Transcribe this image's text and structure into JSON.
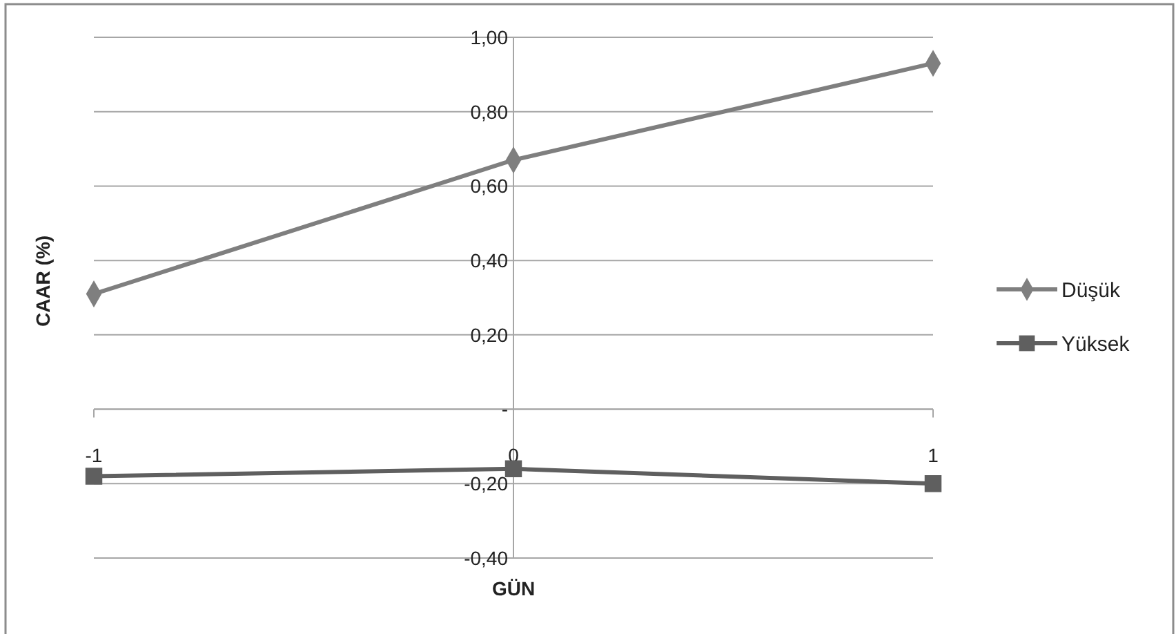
{
  "chart_data": {
    "type": "line",
    "xlabel": "GÜN",
    "ylabel": "CAAR (%)",
    "categories": [
      "-1",
      "0",
      "1"
    ],
    "series": [
      {
        "name": "Düşük",
        "color": "#7f7f7f",
        "marker": "diamond",
        "values": [
          0.31,
          0.67,
          0.93
        ]
      },
      {
        "name": "Yüksek",
        "color": "#5f5f5f",
        "marker": "square",
        "values": [
          -0.18,
          -0.16,
          -0.2
        ]
      }
    ],
    "ylim": [
      -0.4,
      1.0
    ],
    "yticks": [
      {
        "value": -0.4,
        "label": "-0,40"
      },
      {
        "value": -0.2,
        "label": "-0,20"
      },
      {
        "value": 0,
        "label": "-"
      },
      {
        "value": 0.2,
        "label": "0,20"
      },
      {
        "value": 0.4,
        "label": "0,40"
      },
      {
        "value": 0.6,
        "label": "0,60"
      },
      {
        "value": 0.8,
        "label": "0,80"
      },
      {
        "value": 1.0,
        "label": "1,00"
      }
    ],
    "grid": "y",
    "legend": "right",
    "line_style": "solid"
  }
}
